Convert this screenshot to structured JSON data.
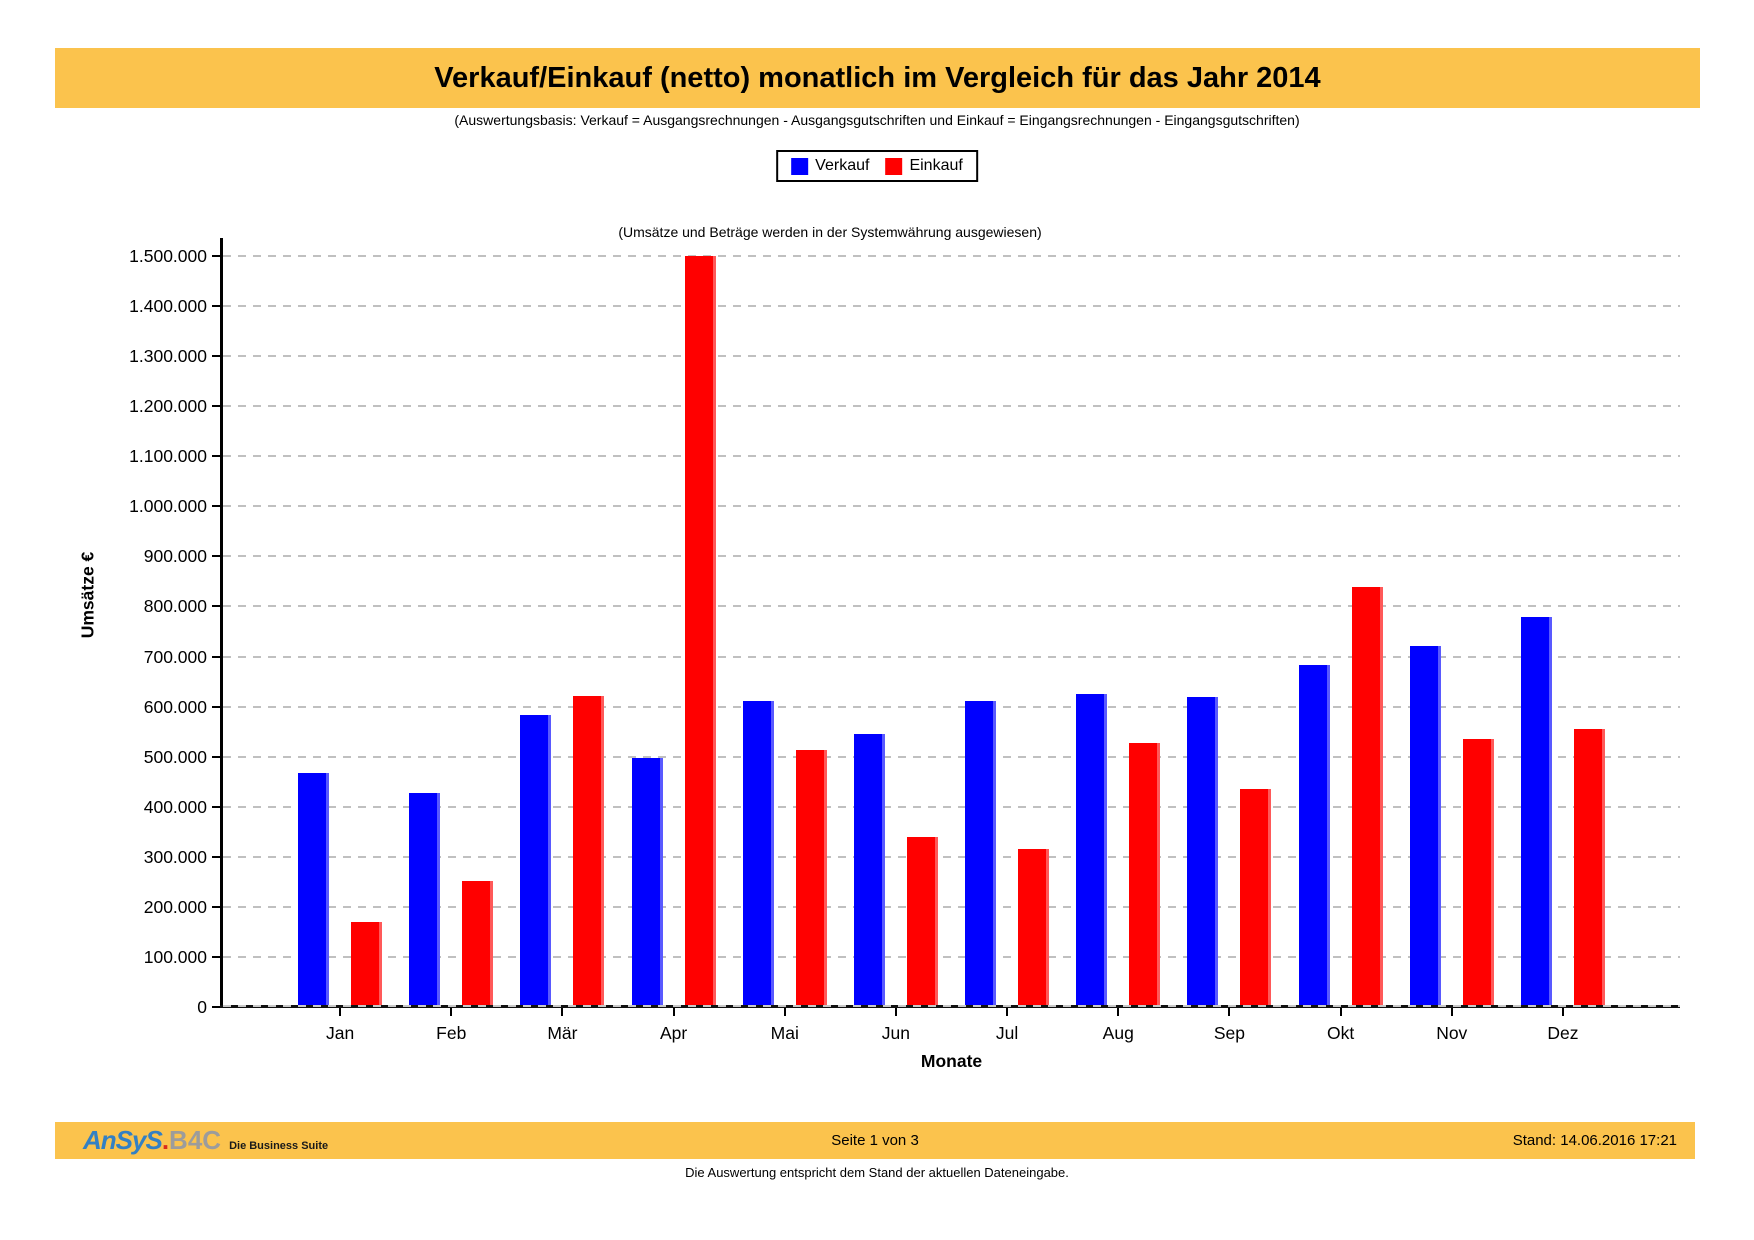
{
  "header": {
    "title": "Verkauf/Einkauf (netto) monatlich im Vergleich für das Jahr 2014",
    "subtitle": "(Auswertungsbasis: Verkauf = Ausgangsrechnungen - Ausgangsgutschriften und Einkauf = Eingangsrechnungen - Eingangsgutschriften)",
    "bar_color": "#FBC34D"
  },
  "chart_data": {
    "type": "bar",
    "title": "Verkauf/Einkauf (netto) monatlich im Vergleich für das Jahr 2014",
    "note": "(Umsätze und Beträge werden in der Systemwährung ausgewiesen)",
    "categories": [
      "Jan",
      "Feb",
      "Mär",
      "Apr",
      "Mai",
      "Jun",
      "Jul",
      "Aug",
      "Sep",
      "Okt",
      "Nov",
      "Dez"
    ],
    "series": [
      {
        "name": "Verkauf",
        "color": "#0000FF",
        "values": [
          467000,
          427000,
          584000,
          497000,
          612000,
          545000,
          611000,
          625000,
          619000,
          684000,
          722000,
          778000
        ]
      },
      {
        "name": "Einkauf",
        "color": "#FF0000",
        "values": [
          170000,
          251000,
          621000,
          1500000,
          513000,
          340000,
          315000,
          528000,
          436000,
          838000,
          535000,
          556000
        ]
      }
    ],
    "xlabel": "Monate",
    "ylabel": "Umsätze €",
    "ylim": [
      0,
      1500000
    ],
    "ytick_step": 100000,
    "ytick_format": "german-thousands-dots",
    "grid": "horizontal-dashed",
    "grid_color": "#C0C0C0",
    "legend_position": "top-center"
  },
  "footer": {
    "logo": {
      "brand_primary": "AnSyS",
      "brand_dot": ".",
      "brand_secondary": "B4C",
      "tagline": "Die Business Suite",
      "primary_color": "#3380C4",
      "dot_color": "#D92B1C",
      "secondary_color": "#9C9C9C"
    },
    "page_indicator": "Seite 1 von 3",
    "timestamp": "Stand: 14.06.2016  17:21",
    "disclaimer": "Die Auswertung entspricht dem Stand der aktuellen Dateneingabe.",
    "bar_color": "#FBC34D"
  }
}
